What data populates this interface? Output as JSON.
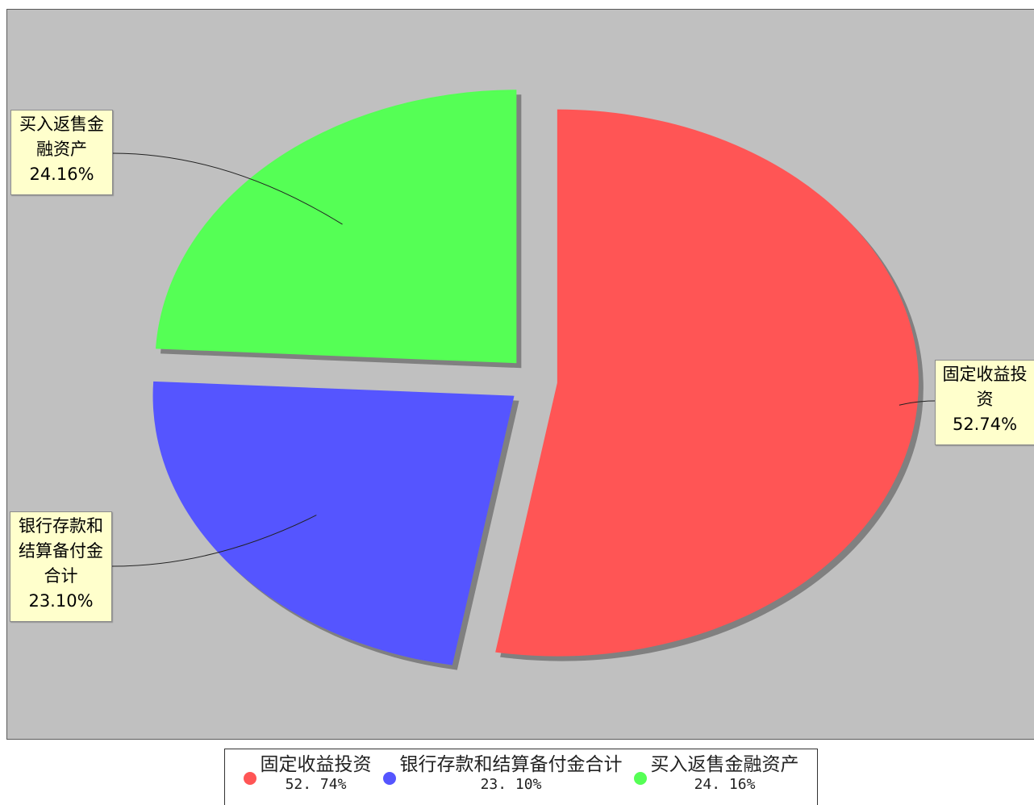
{
  "chart_data": {
    "type": "pie",
    "title": "",
    "exploded": true,
    "slices": [
      {
        "label": "固定收益投资",
        "display_label": "固定收益投资",
        "value": 52.74,
        "percent_label": "52.74%",
        "legend_percent": "52. 74%",
        "color": "#ff5555"
      },
      {
        "label": "银行存款和结算备付金合计",
        "display_label": "银行存款和结算备付金合计",
        "value": 23.1,
        "percent_label": "23.10%",
        "legend_percent": "23. 10%",
        "color": "#5555ff"
      },
      {
        "label": "买入返售金融资产",
        "display_label": "买入返售金融资产",
        "value": 24.16,
        "percent_label": "24.16%",
        "legend_percent": "24. 16%",
        "color": "#55ff55"
      }
    ],
    "legend_position": "bottom",
    "background": "#c0c0c0"
  }
}
